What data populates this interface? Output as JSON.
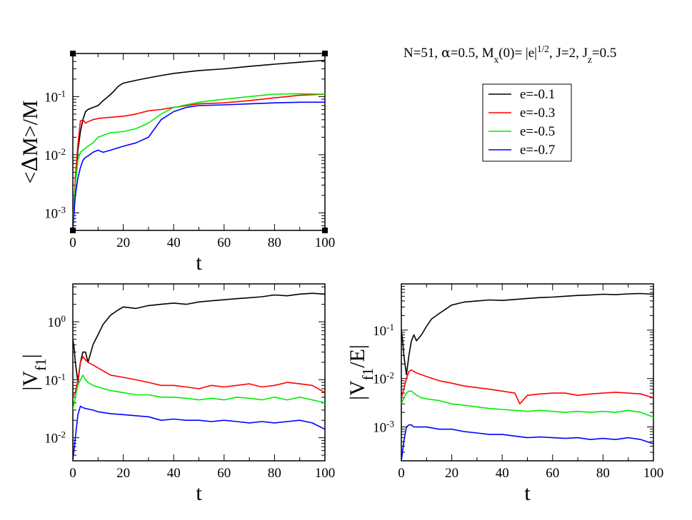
{
  "figure": {
    "params": [
      {
        "t": "N=51, "
      },
      {
        "t": "α",
        "greek": true
      },
      {
        "t": "=0.5, M"
      },
      {
        "t": "x",
        "sub": true
      },
      {
        "t": "(0)= |e|"
      },
      {
        "t": "1/2",
        "sup": true
      },
      {
        "t": ",  J=2, J"
      },
      {
        "t": "z",
        "sub": true
      },
      {
        "t": "=0.5"
      }
    ]
  },
  "chart_data": [
    {
      "id": "top",
      "type": "line",
      "title": "",
      "xlabel": "t",
      "ylabel": [
        {
          "t": "<"
        },
        {
          "t": "Δ",
          "greek": true
        },
        {
          "t": "M>/M"
        }
      ],
      "xlim": [
        0,
        100
      ],
      "ylim": [
        0.0005,
        0.55
      ],
      "yscale": "log",
      "xticks": [
        0,
        20,
        40,
        60,
        80,
        100
      ],
      "yticks": [
        {
          "value": 0.1,
          "base": "10",
          "exp": "-1"
        },
        {
          "value": 0.01,
          "base": "10",
          "exp": "-2"
        },
        {
          "value": 0.001,
          "base": "10",
          "exp": "-3"
        }
      ],
      "grid": false,
      "legend": {
        "position": "inside-right",
        "entries": [
          {
            "label": "e=-0.1",
            "color": "#000000"
          },
          {
            "label": "e=-0.3",
            "color": "#ff0000"
          },
          {
            "label": "e=-0.5",
            "color": "#00ee00"
          },
          {
            "label": "e=-0.7",
            "color": "#0000ff"
          }
        ]
      },
      "series": [
        {
          "name": "e=-0.1",
          "color": "#000000",
          "x": [
            0,
            1,
            2,
            3,
            4,
            5,
            6,
            8,
            10,
            12,
            14,
            16,
            18,
            20,
            25,
            30,
            35,
            40,
            50,
            60,
            70,
            80,
            90,
            100
          ],
          "y": [
            0.0006,
            0.003,
            0.012,
            0.025,
            0.04,
            0.055,
            0.06,
            0.065,
            0.07,
            0.085,
            0.1,
            0.12,
            0.15,
            0.17,
            0.19,
            0.21,
            0.23,
            0.25,
            0.28,
            0.3,
            0.33,
            0.36,
            0.39,
            0.42
          ]
        },
        {
          "name": "e=-0.3",
          "color": "#ff0000",
          "x": [
            0,
            1,
            2,
            3,
            4,
            5,
            6,
            8,
            10,
            15,
            20,
            25,
            30,
            35,
            40,
            50,
            60,
            70,
            80,
            90,
            100
          ],
          "y": [
            0.0006,
            0.004,
            0.015,
            0.038,
            0.04,
            0.035,
            0.037,
            0.04,
            0.042,
            0.044,
            0.046,
            0.05,
            0.057,
            0.06,
            0.065,
            0.075,
            0.078,
            0.085,
            0.095,
            0.105,
            0.11
          ]
        },
        {
          "name": "e=-0.5",
          "color": "#00ee00",
          "x": [
            0,
            1,
            2,
            3,
            4,
            5,
            6,
            8,
            10,
            15,
            20,
            25,
            30,
            35,
            40,
            50,
            60,
            70,
            80,
            90,
            100
          ],
          "y": [
            0.0006,
            0.003,
            0.008,
            0.011,
            0.012,
            0.013,
            0.014,
            0.016,
            0.02,
            0.024,
            0.025,
            0.028,
            0.035,
            0.05,
            0.065,
            0.08,
            0.09,
            0.1,
            0.11,
            0.112,
            0.11
          ]
        },
        {
          "name": "e=-0.7",
          "color": "#0000ff",
          "x": [
            0,
            1,
            2,
            3,
            4,
            5,
            6,
            8,
            10,
            12,
            15,
            20,
            25,
            30,
            35,
            40,
            45,
            50,
            60,
            70,
            80,
            90,
            100
          ],
          "y": [
            0.0005,
            0.002,
            0.004,
            0.006,
            0.008,
            0.009,
            0.0095,
            0.011,
            0.012,
            0.011,
            0.012,
            0.014,
            0.016,
            0.02,
            0.04,
            0.055,
            0.065,
            0.07,
            0.072,
            0.075,
            0.078,
            0.08,
            0.08
          ]
        }
      ]
    },
    {
      "id": "bottom-left",
      "type": "line",
      "title": "",
      "xlabel": "t",
      "ylabel": [
        {
          "t": "|V"
        },
        {
          "t": "f1",
          "sub": true
        },
        {
          "t": "|"
        }
      ],
      "xlim": [
        0,
        100
      ],
      "ylim": [
        0.004,
        4.5
      ],
      "yscale": "log",
      "xticks": [
        0,
        20,
        40,
        60,
        80,
        100
      ],
      "yticks": [
        {
          "value": 1,
          "base": "10",
          "exp": "0"
        },
        {
          "value": 0.1,
          "base": "10",
          "exp": "-1"
        },
        {
          "value": 0.01,
          "base": "10",
          "exp": "-2"
        }
      ],
      "grid": false,
      "series": [
        {
          "name": "e=-0.1",
          "color": "#000000",
          "x": [
            0,
            0.5,
            1,
            2,
            3,
            4,
            5,
            6,
            8,
            10,
            12,
            15,
            18,
            20,
            25,
            30,
            35,
            40,
            45,
            50,
            55,
            60,
            65,
            70,
            75,
            80,
            85,
            90,
            95,
            100
          ],
          "y": [
            0.5,
            0.35,
            0.2,
            0.09,
            0.2,
            0.3,
            0.3,
            0.2,
            0.4,
            0.6,
            0.9,
            1.3,
            1.6,
            1.8,
            1.7,
            1.9,
            2.0,
            2.1,
            2.0,
            2.2,
            2.3,
            2.4,
            2.5,
            2.6,
            2.7,
            2.9,
            2.8,
            3.0,
            3.1,
            3.0
          ]
        },
        {
          "name": "e=-0.3",
          "color": "#ff0000",
          "x": [
            0,
            1,
            2,
            3,
            4,
            5,
            6,
            8,
            10,
            15,
            20,
            25,
            30,
            35,
            40,
            45,
            50,
            55,
            60,
            65,
            70,
            75,
            80,
            85,
            90,
            95,
            100
          ],
          "y": [
            0.05,
            0.06,
            0.1,
            0.2,
            0.25,
            0.22,
            0.2,
            0.18,
            0.16,
            0.12,
            0.11,
            0.1,
            0.09,
            0.08,
            0.08,
            0.075,
            0.07,
            0.08,
            0.075,
            0.08,
            0.085,
            0.075,
            0.08,
            0.09,
            0.085,
            0.08,
            0.06
          ]
        },
        {
          "name": "e=-0.5",
          "color": "#00ee00",
          "x": [
            0,
            1,
            2,
            3,
            4,
            5,
            6,
            8,
            10,
            15,
            20,
            25,
            30,
            35,
            40,
            45,
            50,
            55,
            60,
            65,
            70,
            75,
            80,
            85,
            90,
            95,
            100
          ],
          "y": [
            0.03,
            0.05,
            0.08,
            0.1,
            0.12,
            0.1,
            0.09,
            0.08,
            0.075,
            0.065,
            0.06,
            0.055,
            0.055,
            0.05,
            0.05,
            0.048,
            0.045,
            0.048,
            0.045,
            0.05,
            0.048,
            0.045,
            0.05,
            0.045,
            0.05,
            0.045,
            0.04
          ]
        },
        {
          "name": "e=-0.7",
          "color": "#0000ff",
          "x": [
            0,
            1,
            2,
            3,
            4,
            5,
            8,
            10,
            15,
            20,
            25,
            30,
            35,
            40,
            45,
            50,
            55,
            60,
            65,
            70,
            75,
            80,
            85,
            90,
            95,
            100
          ],
          "y": [
            0.004,
            0.01,
            0.025,
            0.035,
            0.033,
            0.032,
            0.03,
            0.028,
            0.026,
            0.025,
            0.024,
            0.023,
            0.02,
            0.021,
            0.02,
            0.02,
            0.019,
            0.02,
            0.019,
            0.018,
            0.019,
            0.018,
            0.019,
            0.02,
            0.018,
            0.014
          ]
        }
      ]
    },
    {
      "id": "bottom-right",
      "type": "line",
      "title": "",
      "xlabel": "t",
      "ylabel": [
        {
          "t": "|V"
        },
        {
          "t": "f1",
          "sub": true
        },
        {
          "t": "/E|"
        }
      ],
      "xlim": [
        0,
        100
      ],
      "ylim": [
        0.0002,
        0.9
      ],
      "yscale": "log",
      "xticks": [
        0,
        20,
        40,
        60,
        80,
        100
      ],
      "yticks": [
        {
          "value": 0.1,
          "base": "10",
          "exp": "-1"
        },
        {
          "value": 0.01,
          "base": "10",
          "exp": "-2"
        },
        {
          "value": 0.001,
          "base": "10",
          "exp": "-3"
        }
      ],
      "grid": false,
      "series": [
        {
          "name": "e=-0.1",
          "color": "#000000",
          "x": [
            0,
            0.5,
            1,
            2,
            3,
            4,
            5,
            6,
            8,
            10,
            12,
            15,
            18,
            20,
            25,
            30,
            35,
            40,
            45,
            50,
            55,
            60,
            65,
            70,
            75,
            80,
            85,
            90,
            95,
            100
          ],
          "y": [
            0.1,
            0.06,
            0.03,
            0.012,
            0.03,
            0.06,
            0.08,
            0.06,
            0.08,
            0.12,
            0.17,
            0.22,
            0.28,
            0.33,
            0.38,
            0.4,
            0.42,
            0.41,
            0.43,
            0.45,
            0.47,
            0.48,
            0.5,
            0.52,
            0.53,
            0.55,
            0.54,
            0.56,
            0.57,
            0.55
          ]
        },
        {
          "name": "e=-0.3",
          "color": "#ff0000",
          "x": [
            0,
            1,
            2,
            3,
            4,
            5,
            6,
            8,
            10,
            15,
            20,
            25,
            30,
            35,
            40,
            45,
            47,
            50,
            55,
            60,
            65,
            70,
            75,
            80,
            85,
            90,
            95,
            100
          ],
          "y": [
            0.004,
            0.006,
            0.01,
            0.014,
            0.015,
            0.014,
            0.013,
            0.012,
            0.011,
            0.009,
            0.008,
            0.007,
            0.0065,
            0.006,
            0.0055,
            0.005,
            0.003,
            0.0045,
            0.0048,
            0.005,
            0.005,
            0.0045,
            0.0048,
            0.005,
            0.0052,
            0.005,
            0.0048,
            0.004
          ]
        },
        {
          "name": "e=-0.5",
          "color": "#00ee00",
          "x": [
            0,
            1,
            2,
            3,
            4,
            5,
            6,
            8,
            10,
            15,
            20,
            25,
            30,
            35,
            40,
            45,
            50,
            55,
            60,
            65,
            70,
            75,
            80,
            85,
            90,
            95,
            100
          ],
          "y": [
            0.003,
            0.004,
            0.005,
            0.0055,
            0.0055,
            0.005,
            0.0045,
            0.004,
            0.0038,
            0.0035,
            0.003,
            0.0028,
            0.0026,
            0.0024,
            0.0023,
            0.0022,
            0.0021,
            0.0022,
            0.0021,
            0.002,
            0.0021,
            0.002,
            0.0021,
            0.002,
            0.0022,
            0.002,
            0.0016
          ]
        },
        {
          "name": "e=-0.7",
          "color": "#0000ff",
          "x": [
            0,
            1,
            2,
            3,
            4,
            5,
            8,
            10,
            15,
            20,
            25,
            30,
            35,
            40,
            45,
            50,
            55,
            60,
            65,
            70,
            75,
            80,
            85,
            90,
            95,
            100
          ],
          "y": [
            0.0002,
            0.0005,
            0.001,
            0.0011,
            0.0011,
            0.001,
            0.001,
            0.001,
            0.0009,
            0.0009,
            0.0008,
            0.00075,
            0.0007,
            0.0007,
            0.00065,
            0.0006,
            0.00062,
            0.0006,
            0.00058,
            0.0006,
            0.00055,
            0.00058,
            0.00055,
            0.0006,
            0.00055,
            0.00045
          ]
        }
      ]
    }
  ]
}
